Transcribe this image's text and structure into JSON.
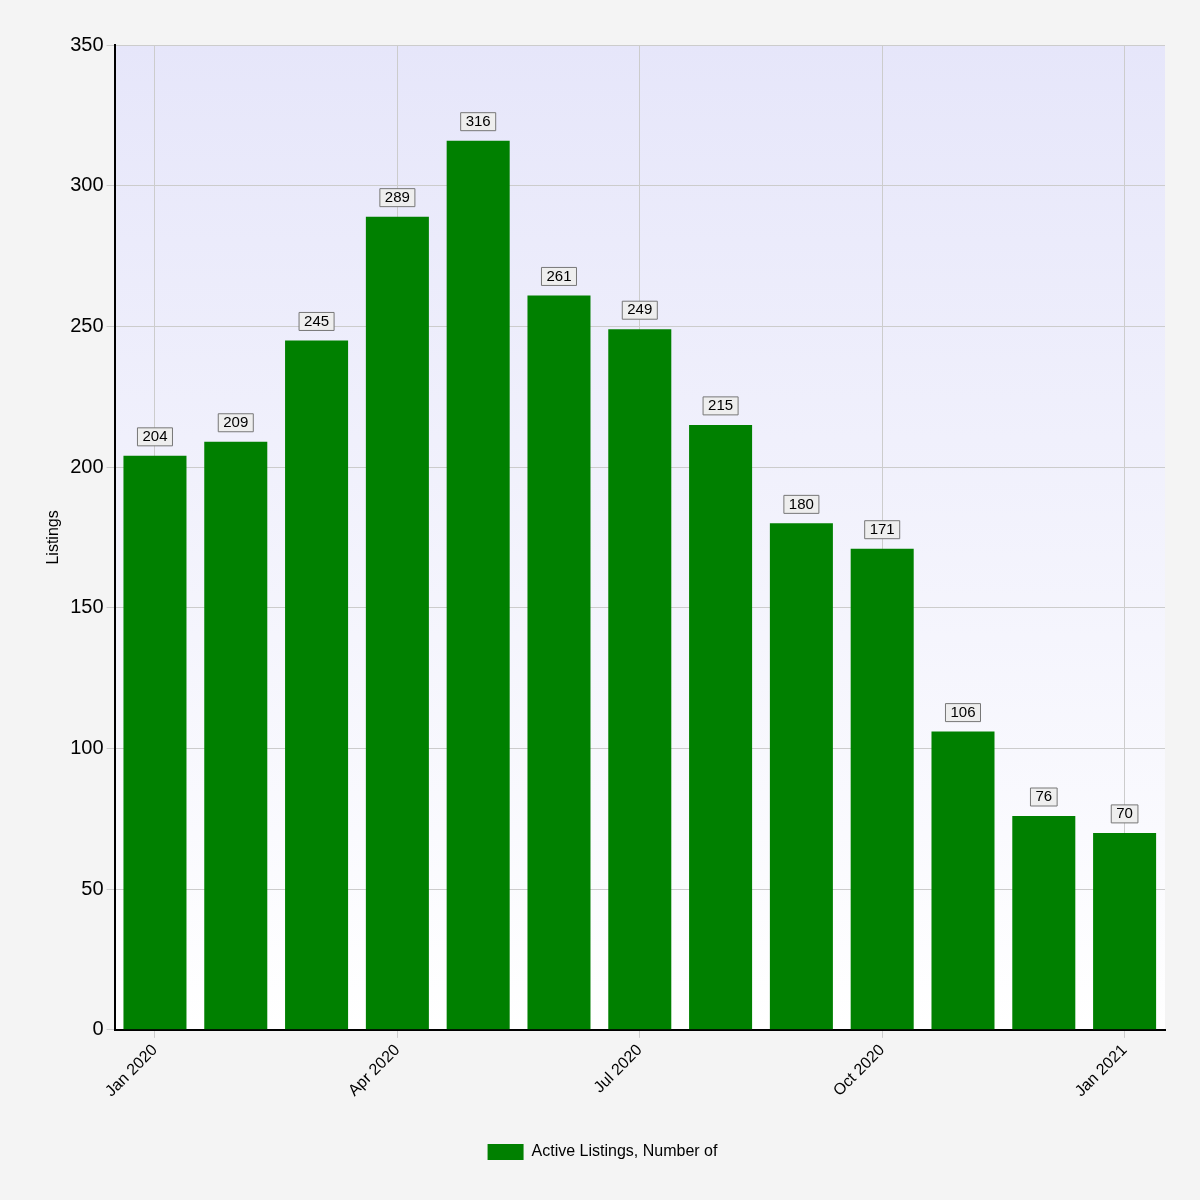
{
  "chart_data": {
    "type": "bar",
    "ylabel": "Listings",
    "categories": [
      "Jan 2020",
      null,
      null,
      "Apr 2020",
      null,
      null,
      "Jul 2020",
      null,
      null,
      "Oct 2020",
      null,
      null,
      "Jan 2021"
    ],
    "series": [
      {
        "name": "Active Listings, Number of",
        "color": "#008000",
        "values": [
          204,
          209,
          245,
          289,
          316,
          261,
          249,
          215,
          180,
          171,
          106,
          76,
          70
        ]
      }
    ],
    "ylim": [
      0,
      350
    ],
    "yticks": [
      0,
      50,
      100,
      150,
      200,
      250,
      300,
      350
    ],
    "grid": true,
    "data_labels": true,
    "legend": "bottom"
  }
}
